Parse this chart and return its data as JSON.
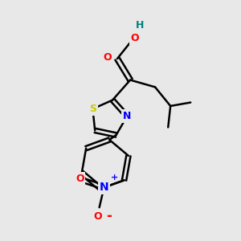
{
  "background_color": "#e8e8e8",
  "bond_color": "#000000",
  "bond_width": 1.8,
  "atom_colors": {
    "O": "#ff0000",
    "N": "#0000ff",
    "S": "#cccc00",
    "H": "#008080",
    "C": "#000000"
  },
  "font_size": 9,
  "fig_size": [
    3.0,
    3.0
  ],
  "dpi": 100,
  "xlim": [
    0,
    10
  ],
  "ylim": [
    0,
    10
  ]
}
